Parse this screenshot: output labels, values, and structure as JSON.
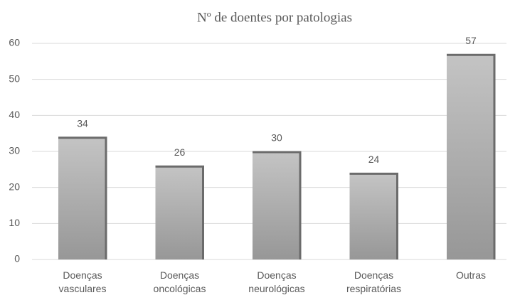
{
  "chart_data": {
    "type": "bar",
    "title": "Nº de doentes por patologias",
    "categories": [
      "Doenças vasculares",
      "Doenças oncológicas",
      "Doenças neurológicas",
      "Doenças respiratórias",
      "Outras"
    ],
    "values": [
      34,
      26,
      30,
      24,
      57
    ],
    "color": "#aaaaaa",
    "ylim": [
      0,
      60
    ],
    "yticks": [
      0,
      10,
      20,
      30,
      40,
      50,
      60
    ],
    "grid": true
  }
}
